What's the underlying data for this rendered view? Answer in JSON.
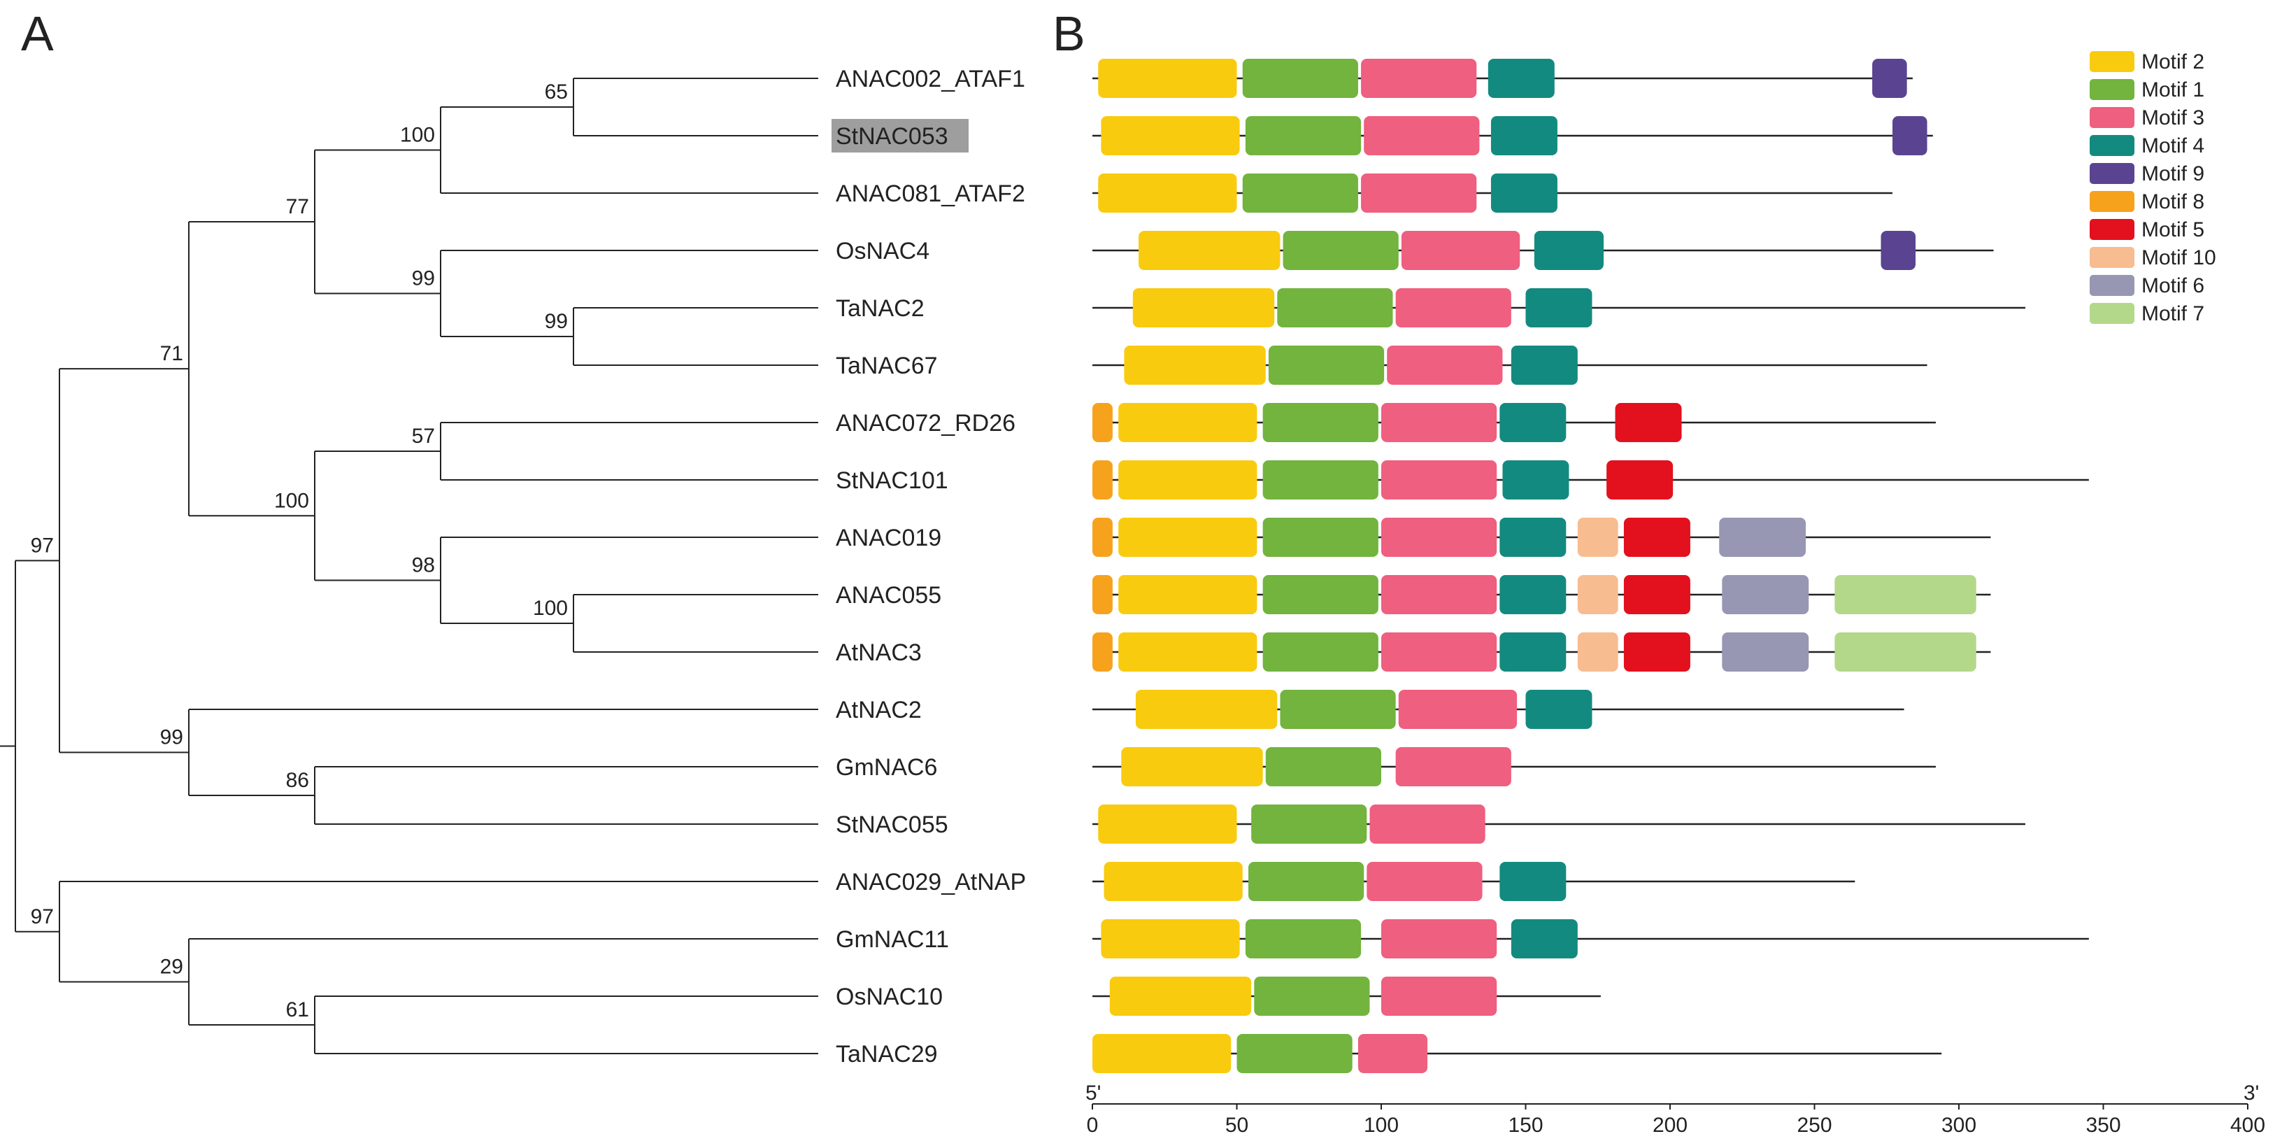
{
  "panels": {
    "a": "A",
    "b": "B"
  },
  "tree": {
    "leaves": [
      "ANAC002_ATAF1",
      "StNAC053",
      "ANAC081_ATAF2",
      "OsNAC4",
      "TaNAC2",
      "TaNAC67",
      "ANAC072_RD26",
      "StNAC101",
      "ANAC019",
      "ANAC055",
      "AtNAC3",
      "AtNAC2",
      "GmNAC6",
      "StNAC055",
      "ANAC029_AtNAP",
      "GmNAC11",
      "OsNAC10",
      "TaNAC29"
    ],
    "highlighted": "StNAC053",
    "highlight_color": "#9e9e9e",
    "root": {
      "c": [
        {
          "bs": "97",
          "c": [
            {
              "bs": "71",
              "c": [
                {
                  "bs": "77",
                  "c": [
                    {
                      "bs": "100",
                      "c": [
                        {
                          "bs": "65",
                          "c": [
                            {
                              "l": 0
                            },
                            {
                              "l": 1
                            }
                          ]
                        },
                        {
                          "l": 2
                        }
                      ]
                    },
                    {
                      "bs": "99",
                      "c": [
                        {
                          "l": 3
                        },
                        {
                          "bs": "99",
                          "c": [
                            {
                              "l": 4
                            },
                            {
                              "l": 5
                            }
                          ]
                        }
                      ]
                    }
                  ]
                },
                {
                  "bs": "100",
                  "c": [
                    {
                      "bs": "57",
                      "c": [
                        {
                          "l": 6
                        },
                        {
                          "l": 7
                        }
                      ]
                    },
                    {
                      "bs": "98",
                      "c": [
                        {
                          "l": 8
                        },
                        {
                          "bs": "100",
                          "c": [
                            {
                              "l": 9
                            },
                            {
                              "l": 10
                            }
                          ]
                        }
                      ]
                    }
                  ]
                }
              ]
            },
            {
              "bs": "99",
              "c": [
                {
                  "l": 11
                },
                {
                  "bs": "86",
                  "c": [
                    {
                      "l": 12
                    },
                    {
                      "l": 13
                    }
                  ]
                }
              ]
            }
          ]
        },
        {
          "bs": "97",
          "c": [
            {
              "l": 14
            },
            {
              "bs": "29",
              "c": [
                {
                  "l": 15
                },
                {
                  "bs": "61",
                  "c": [
                    {
                      "l": 16
                    },
                    {
                      "l": 17
                    }
                  ]
                }
              ]
            }
          ]
        }
      ]
    }
  },
  "motif_legend": [
    {
      "name": "Motif 2",
      "color": "#f9cb0f"
    },
    {
      "name": "Motif 1",
      "color": "#72b43e"
    },
    {
      "name": "Motif 3",
      "color": "#ef5f7f"
    },
    {
      "name": "Motif 4",
      "color": "#138a7f"
    },
    {
      "name": "Motif 9",
      "color": "#5a4491"
    },
    {
      "name": "Motif 8",
      "color": "#f7a21d"
    },
    {
      "name": "Motif 5",
      "color": "#e3101e"
    },
    {
      "name": "Motif 10",
      "color": "#f7bc90"
    },
    {
      "name": "Motif 6",
      "color": "#9796b3"
    },
    {
      "name": "Motif 7",
      "color": "#b4d88a"
    }
  ],
  "axis": {
    "ticks": [
      0,
      50,
      100,
      150,
      200,
      250,
      300,
      350,
      400
    ],
    "five_prime": "5'",
    "three_prime": "3'",
    "range": [
      0,
      400
    ]
  },
  "proteins": [
    {
      "length": 284,
      "motifs": [
        [
          "Motif 2",
          2,
          50
        ],
        [
          "Motif 1",
          52,
          92
        ],
        [
          "Motif 3",
          93,
          133
        ],
        [
          "Motif 4",
          137,
          160
        ],
        [
          "Motif 9",
          270,
          282
        ]
      ]
    },
    {
      "length": 291,
      "motifs": [
        [
          "Motif 2",
          3,
          51
        ],
        [
          "Motif 1",
          53,
          93
        ],
        [
          "Motif 3",
          94,
          134
        ],
        [
          "Motif 4",
          138,
          161
        ],
        [
          "Motif 9",
          277,
          289
        ]
      ]
    },
    {
      "length": 277,
      "motifs": [
        [
          "Motif 2",
          2,
          50
        ],
        [
          "Motif 1",
          52,
          92
        ],
        [
          "Motif 3",
          93,
          133
        ],
        [
          "Motif 4",
          138,
          161
        ]
      ]
    },
    {
      "length": 312,
      "motifs": [
        [
          "Motif 2",
          16,
          65
        ],
        [
          "Motif 1",
          66,
          106
        ],
        [
          "Motif 3",
          107,
          148
        ],
        [
          "Motif 4",
          153,
          177
        ],
        [
          "Motif 9",
          273,
          285
        ]
      ]
    },
    {
      "length": 323,
      "motifs": [
        [
          "Motif 2",
          14,
          63
        ],
        [
          "Motif 1",
          64,
          104
        ],
        [
          "Motif 3",
          105,
          145
        ],
        [
          "Motif 4",
          150,
          173
        ]
      ]
    },
    {
      "length": 289,
      "motifs": [
        [
          "Motif 2",
          11,
          60
        ],
        [
          "Motif 1",
          61,
          101
        ],
        [
          "Motif 3",
          102,
          142
        ],
        [
          "Motif 4",
          145,
          168
        ]
      ]
    },
    {
      "length": 292,
      "motifs": [
        [
          "Motif 8",
          0,
          7
        ],
        [
          "Motif 2",
          9,
          57
        ],
        [
          "Motif 1",
          59,
          99
        ],
        [
          "Motif 3",
          100,
          140
        ],
        [
          "Motif 4",
          141,
          164
        ],
        [
          "Motif 5",
          181,
          204
        ]
      ]
    },
    {
      "length": 345,
      "motifs": [
        [
          "Motif 8",
          0,
          7
        ],
        [
          "Motif 2",
          9,
          57
        ],
        [
          "Motif 1",
          59,
          99
        ],
        [
          "Motif 3",
          100,
          140
        ],
        [
          "Motif 4",
          142,
          165
        ],
        [
          "Motif 5",
          178,
          201
        ]
      ]
    },
    {
      "length": 311,
      "motifs": [
        [
          "Motif 8",
          0,
          7
        ],
        [
          "Motif 2",
          9,
          57
        ],
        [
          "Motif 1",
          59,
          99
        ],
        [
          "Motif 3",
          100,
          140
        ],
        [
          "Motif 4",
          141,
          164
        ],
        [
          "Motif 10",
          168,
          182
        ],
        [
          "Motif 5",
          184,
          207
        ],
        [
          "Motif 6",
          217,
          247
        ]
      ]
    },
    {
      "length": 311,
      "motifs": [
        [
          "Motif 8",
          0,
          7
        ],
        [
          "Motif 2",
          9,
          57
        ],
        [
          "Motif 1",
          59,
          99
        ],
        [
          "Motif 3",
          100,
          140
        ],
        [
          "Motif 4",
          141,
          164
        ],
        [
          "Motif 10",
          168,
          182
        ],
        [
          "Motif 5",
          184,
          207
        ],
        [
          "Motif 6",
          218,
          248
        ],
        [
          "Motif 7",
          257,
          306
        ]
      ]
    },
    {
      "length": 311,
      "motifs": [
        [
          "Motif 8",
          0,
          7
        ],
        [
          "Motif 2",
          9,
          57
        ],
        [
          "Motif 1",
          59,
          99
        ],
        [
          "Motif 3",
          100,
          140
        ],
        [
          "Motif 4",
          141,
          164
        ],
        [
          "Motif 10",
          168,
          182
        ],
        [
          "Motif 5",
          184,
          207
        ],
        [
          "Motif 6",
          218,
          248
        ],
        [
          "Motif 7",
          257,
          306
        ]
      ]
    },
    {
      "length": 281,
      "motifs": [
        [
          "Motif 2",
          15,
          64
        ],
        [
          "Motif 1",
          65,
          105
        ],
        [
          "Motif 3",
          106,
          147
        ],
        [
          "Motif 4",
          150,
          173
        ]
      ]
    },
    {
      "length": 292,
      "motifs": [
        [
          "Motif 2",
          10,
          59
        ],
        [
          "Motif 1",
          60,
          100
        ],
        [
          "Motif 3",
          105,
          145
        ]
      ]
    },
    {
      "length": 323,
      "motifs": [
        [
          "Motif 2",
          2,
          50
        ],
        [
          "Motif 1",
          55,
          95
        ],
        [
          "Motif 3",
          96,
          136
        ]
      ]
    },
    {
      "length": 264,
      "motifs": [
        [
          "Motif 2",
          4,
          52
        ],
        [
          "Motif 1",
          54,
          94
        ],
        [
          "Motif 3",
          95,
          135
        ],
        [
          "Motif 4",
          141,
          164
        ]
      ]
    },
    {
      "length": 345,
      "motifs": [
        [
          "Motif 2",
          3,
          51
        ],
        [
          "Motif 1",
          53,
          93
        ],
        [
          "Motif 3",
          100,
          140
        ],
        [
          "Motif 4",
          145,
          168
        ]
      ]
    },
    {
      "length": 176,
      "motifs": [
        [
          "Motif 2",
          6,
          55
        ],
        [
          "Motif 1",
          56,
          96
        ],
        [
          "Motif 3",
          100,
          140
        ]
      ]
    },
    {
      "length": 294,
      "motifs": [
        [
          "Motif 2",
          0,
          48
        ],
        [
          "Motif 1",
          50,
          90
        ],
        [
          "Motif 3",
          92,
          116
        ]
      ]
    }
  ]
}
